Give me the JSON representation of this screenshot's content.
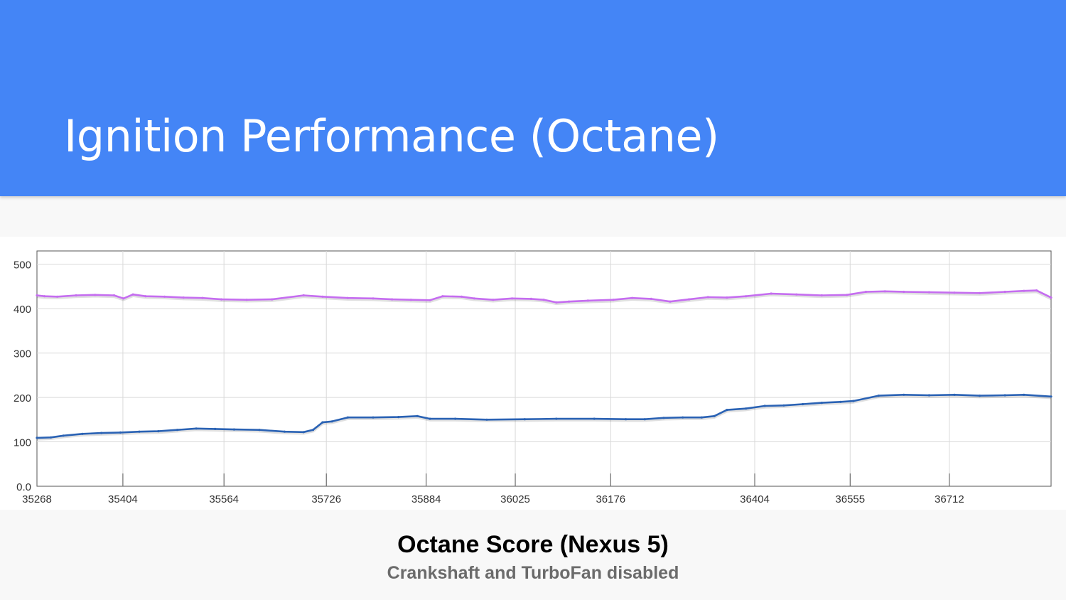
{
  "slide": {
    "title": "Ignition Performance (Octane)",
    "caption_title": "Octane Score (Nexus 5)",
    "caption_subtitle": "Crankshaft and TurboFan disabled"
  },
  "colors": {
    "header": "#4485f6",
    "series_upper": "#c56df0",
    "series_lower": "#2a62b4"
  },
  "chart_data": {
    "type": "line",
    "title": "",
    "xlabel": "",
    "ylabel": "",
    "xlim": [
      35268,
      36873
    ],
    "ylim": [
      0,
      530
    ],
    "x_ticks": [
      35268,
      35404,
      35564,
      35726,
      35884,
      36025,
      36176,
      36404,
      36555,
      36712
    ],
    "y_ticks": [
      0,
      100,
      200,
      300,
      400,
      500
    ],
    "y_tick_labels": [
      "0.0",
      "100",
      "200",
      "300",
      "400",
      "500"
    ],
    "grid": true,
    "legend": "none",
    "series": [
      {
        "color": "#c56df0",
        "x": [
          35268,
          35280,
          35300,
          35330,
          35360,
          35390,
          35405,
          35420,
          35440,
          35470,
          35500,
          35530,
          35560,
          35600,
          35640,
          35690,
          35720,
          35760,
          35800,
          35830,
          35860,
          35890,
          35910,
          35940,
          35960,
          35990,
          36020,
          36050,
          36070,
          36090,
          36110,
          36140,
          36180,
          36210,
          36240,
          36270,
          36300,
          36330,
          36360,
          36390,
          36430,
          36470,
          36510,
          36550,
          36580,
          36610,
          36640,
          36680,
          36720,
          36760,
          36800,
          36830,
          36850,
          36873
        ],
        "y": [
          430,
          428,
          427,
          430,
          431,
          430,
          423,
          432,
          428,
          427,
          425,
          424,
          421,
          420,
          421,
          430,
          427,
          424,
          423,
          421,
          420,
          419,
          428,
          427,
          423,
          420,
          423,
          422,
          420,
          414,
          416,
          418,
          420,
          424,
          422,
          416,
          421,
          426,
          425,
          428,
          434,
          432,
          430,
          431,
          438,
          439,
          438,
          437,
          436,
          435,
          438,
          440,
          441,
          425
        ]
      },
      {
        "color": "#2a62b4",
        "x": [
          35268,
          35290,
          35310,
          35340,
          35370,
          35400,
          35430,
          35460,
          35490,
          35520,
          35550,
          35580,
          35620,
          35660,
          35690,
          35705,
          35720,
          35735,
          35760,
          35800,
          35840,
          35870,
          35890,
          35930,
          35980,
          36040,
          36090,
          36150,
          36200,
          36230,
          36260,
          36290,
          36320,
          36340,
          36360,
          36390,
          36420,
          36450,
          36480,
          36510,
          36540,
          36560,
          36600,
          36640,
          36680,
          36720,
          36760,
          36800,
          36830,
          36873
        ],
        "y": [
          109,
          110,
          114,
          118,
          120,
          121,
          123,
          124,
          127,
          130,
          129,
          128,
          127,
          123,
          122,
          127,
          144,
          146,
          155,
          155,
          156,
          158,
          152,
          152,
          150,
          151,
          152,
          152,
          151,
          151,
          154,
          155,
          155,
          158,
          172,
          175,
          181,
          182,
          185,
          188,
          190,
          192,
          204,
          206,
          205,
          206,
          204,
          205,
          206,
          202
        ]
      }
    ]
  }
}
